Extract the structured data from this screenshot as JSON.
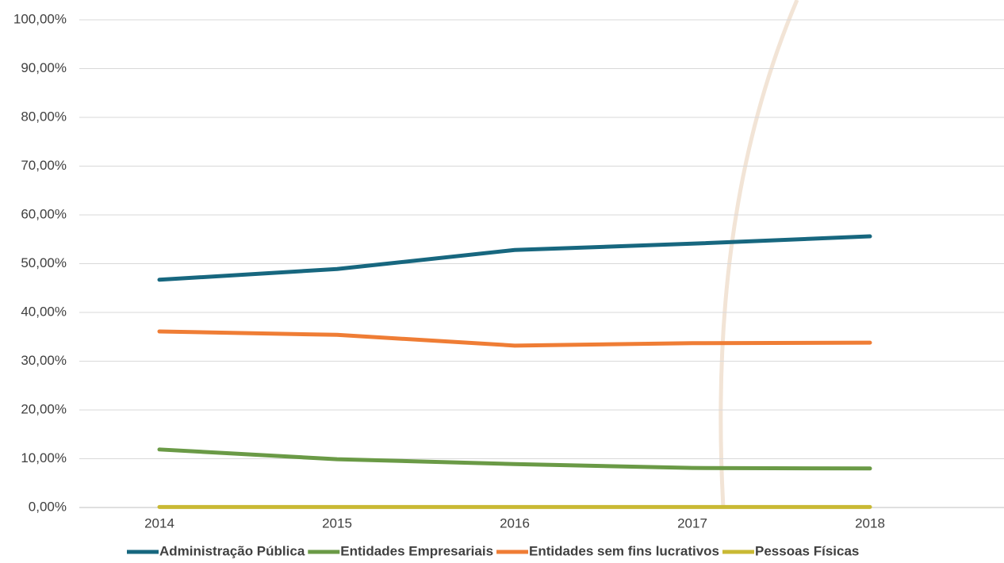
{
  "chart_data": {
    "type": "line",
    "categories": [
      "2014",
      "2015",
      "2016",
      "2017",
      "2018"
    ],
    "series": [
      {
        "name": "Administração Pública",
        "color": "#17677f",
        "values": [
          46.7,
          48.9,
          52.8,
          54.1,
          55.6
        ]
      },
      {
        "name": "Entidades Empresariais",
        "color": "#6a9a46",
        "values": [
          11.9,
          9.9,
          8.9,
          8.1,
          8.0
        ]
      },
      {
        "name": "Entidades sem fins lucrativos",
        "color": "#ef7d35",
        "values": [
          36.1,
          35.4,
          33.2,
          33.7,
          33.8
        ]
      },
      {
        "name": "Pessoas Físicas",
        "color": "#c9b934",
        "values": [
          0.1,
          0.1,
          0.1,
          0.1,
          0.1
        ]
      }
    ],
    "ylim": [
      0,
      100
    ],
    "yticks": [
      {
        "value": 0,
        "label": "0,00%"
      },
      {
        "value": 10,
        "label": "10,00%"
      },
      {
        "value": 20,
        "label": "20,00%"
      },
      {
        "value": 30,
        "label": "30,00%"
      },
      {
        "value": 40,
        "label": "40,00%"
      },
      {
        "value": 50,
        "label": "50,00%"
      },
      {
        "value": 60,
        "label": "60,00%"
      },
      {
        "value": 70,
        "label": "70,00%"
      },
      {
        "value": 80,
        "label": "80,00%"
      },
      {
        "value": 90,
        "label": "90,00%"
      },
      {
        "value": 100,
        "label": "100,00%"
      }
    ],
    "grid": true,
    "legend": "bottom"
  }
}
